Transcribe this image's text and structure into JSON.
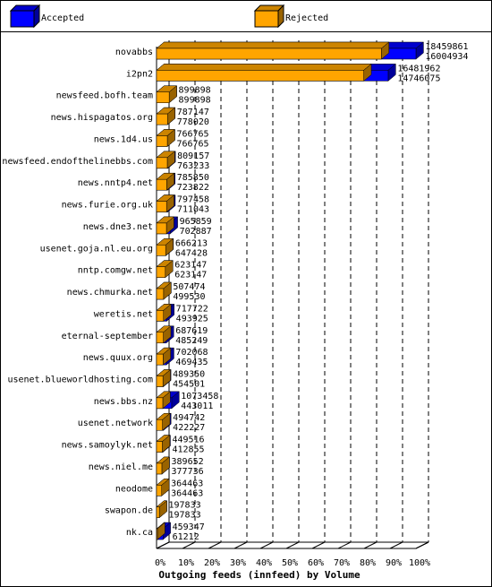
{
  "chart_data": {
    "type": "bar3d-horizontal",
    "title": "Outgoing feeds (innfeed) by Volume",
    "categories": [
      "novabbs",
      "i2pn2",
      "newsfeed.bofh.team",
      "news.hispagatos.org",
      "news.1d4.us",
      "newsfeed.endofthelinebbs.com",
      "news.nntp4.net",
      "news.furie.org.uk",
      "news.dne3.net",
      "usenet.goja.nl.eu.org",
      "nntp.comgw.net",
      "news.chmurka.net",
      "weretis.net",
      "eternal-september",
      "news.quux.org",
      "usenet.blueworldhosting.com",
      "news.bbs.nz",
      "usenet.network",
      "news.samoylyk.net",
      "news.niel.me",
      "neodome",
      "swapon.de",
      "nk.ca"
    ],
    "series": [
      {
        "name": "Accepted",
        "color": "#0000ff",
        "values": [
          18459861,
          16481962,
          899898,
          787147,
          766765,
          809157,
          785850,
          797458,
          965859,
          666213,
          623147,
          507474,
          717722,
          687619,
          702068,
          489350,
          1073458,
          494742,
          449516,
          389652,
          364463,
          197833,
          459347
        ]
      },
      {
        "name": "Rejected",
        "color": "#ffa500",
        "values": [
          16004934,
          14746075,
          899898,
          778020,
          766765,
          763233,
          723822,
          711043,
          702887,
          647428,
          623147,
          499530,
          493925,
          485249,
          469435,
          454501,
          443011,
          422227,
          412855,
          377736,
          364463,
          197833,
          61212
        ]
      }
    ],
    "xlim": [
      0,
      100
    ],
    "xticks": [
      {
        "value": 0,
        "label": "0%"
      },
      {
        "value": 10,
        "label": "10%"
      },
      {
        "value": 20,
        "label": "20%"
      },
      {
        "value": 30,
        "label": "30%"
      },
      {
        "value": 40,
        "label": "40%"
      },
      {
        "value": 50,
        "label": "50%"
      },
      {
        "value": 60,
        "label": "60%"
      },
      {
        "value": 70,
        "label": "70%"
      },
      {
        "value": 80,
        "label": "80%"
      },
      {
        "value": 90,
        "label": "90%"
      },
      {
        "value": 100,
        "label": "100%"
      }
    ],
    "grid": true
  }
}
